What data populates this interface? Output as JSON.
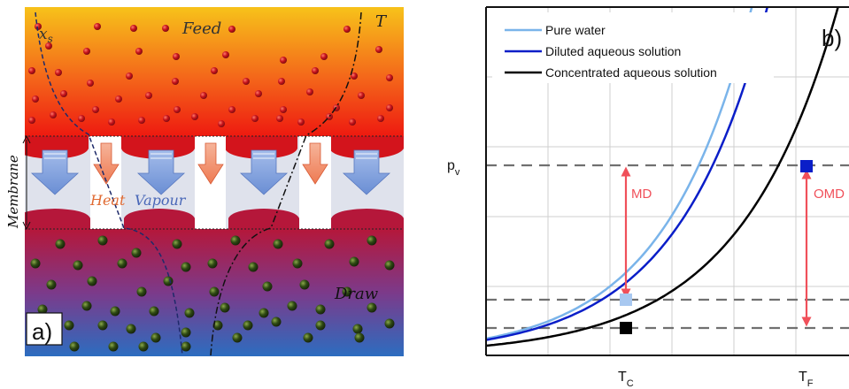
{
  "panel_a": {
    "label": "a)",
    "feed_label": "Feed",
    "draw_label": "Draw",
    "membrane_label": "Membrane",
    "heat_label": "Heat",
    "vapour_label": "Vapour",
    "xs_label": "x",
    "xs_sub": "s",
    "t_label": "T",
    "colors": {
      "feed_top": "#f7c21a",
      "feed_bottom": "#ee1a10",
      "draw_top": "#b5173a",
      "draw_bottom": "#2c6dc0",
      "membrane_gap": "#dfe2ec",
      "vapour_arrow": "#7a9ad6",
      "heat_arrow": "#f08c66",
      "feed_dot": "#c8141c",
      "draw_dot": "#2f4a14"
    }
  },
  "panel_b": {
    "label": "b)",
    "legend": [
      {
        "name": "Pure water",
        "color": "#7ab4ea"
      },
      {
        "name": "Diluted aqueous solution",
        "color": "#0a1ec8"
      },
      {
        "name": "Concentrated aqueous solution",
        "color": "#000000"
      }
    ],
    "y_axis_label": "p",
    "y_axis_sub": "v",
    "x_ticks": [
      {
        "main": "T",
        "sub": "C"
      },
      {
        "main": "T",
        "sub": "F"
      }
    ],
    "md_label": "MD",
    "omd_label": "OMD",
    "arrow_color": "#f0505a"
  },
  "chart_data": {
    "type": "line",
    "x_tick_labels": [
      "T_C",
      "T_F"
    ],
    "ylabel": "p_v",
    "grid": true,
    "legend_position": "top-left",
    "series": [
      {
        "name": "Pure water",
        "color": "#7ab4ea",
        "k": 0.0,
        "scale": 1.0
      },
      {
        "name": "Diluted aqueous solution",
        "color": "#0a1ec8",
        "k": 0.6,
        "scale": 1.0
      },
      {
        "name": "Concentrated aqueous solution",
        "color": "#000000",
        "k": 1.0,
        "scale": 0.6
      }
    ],
    "annotations": [
      {
        "text": "MD",
        "type": "double-arrow",
        "at": "T_C"
      },
      {
        "text": "OMD",
        "type": "double-arrow",
        "at": "T_F"
      }
    ],
    "markers": [
      {
        "series": "Pure water",
        "x": "T_C",
        "color": "#a8c8f0"
      },
      {
        "series": "Concentrated aqueous solution",
        "x": "T_C",
        "color": "#000000"
      },
      {
        "series": "Diluted aqueous solution",
        "x": "T_F",
        "color": "#0a1ec8"
      }
    ]
  }
}
